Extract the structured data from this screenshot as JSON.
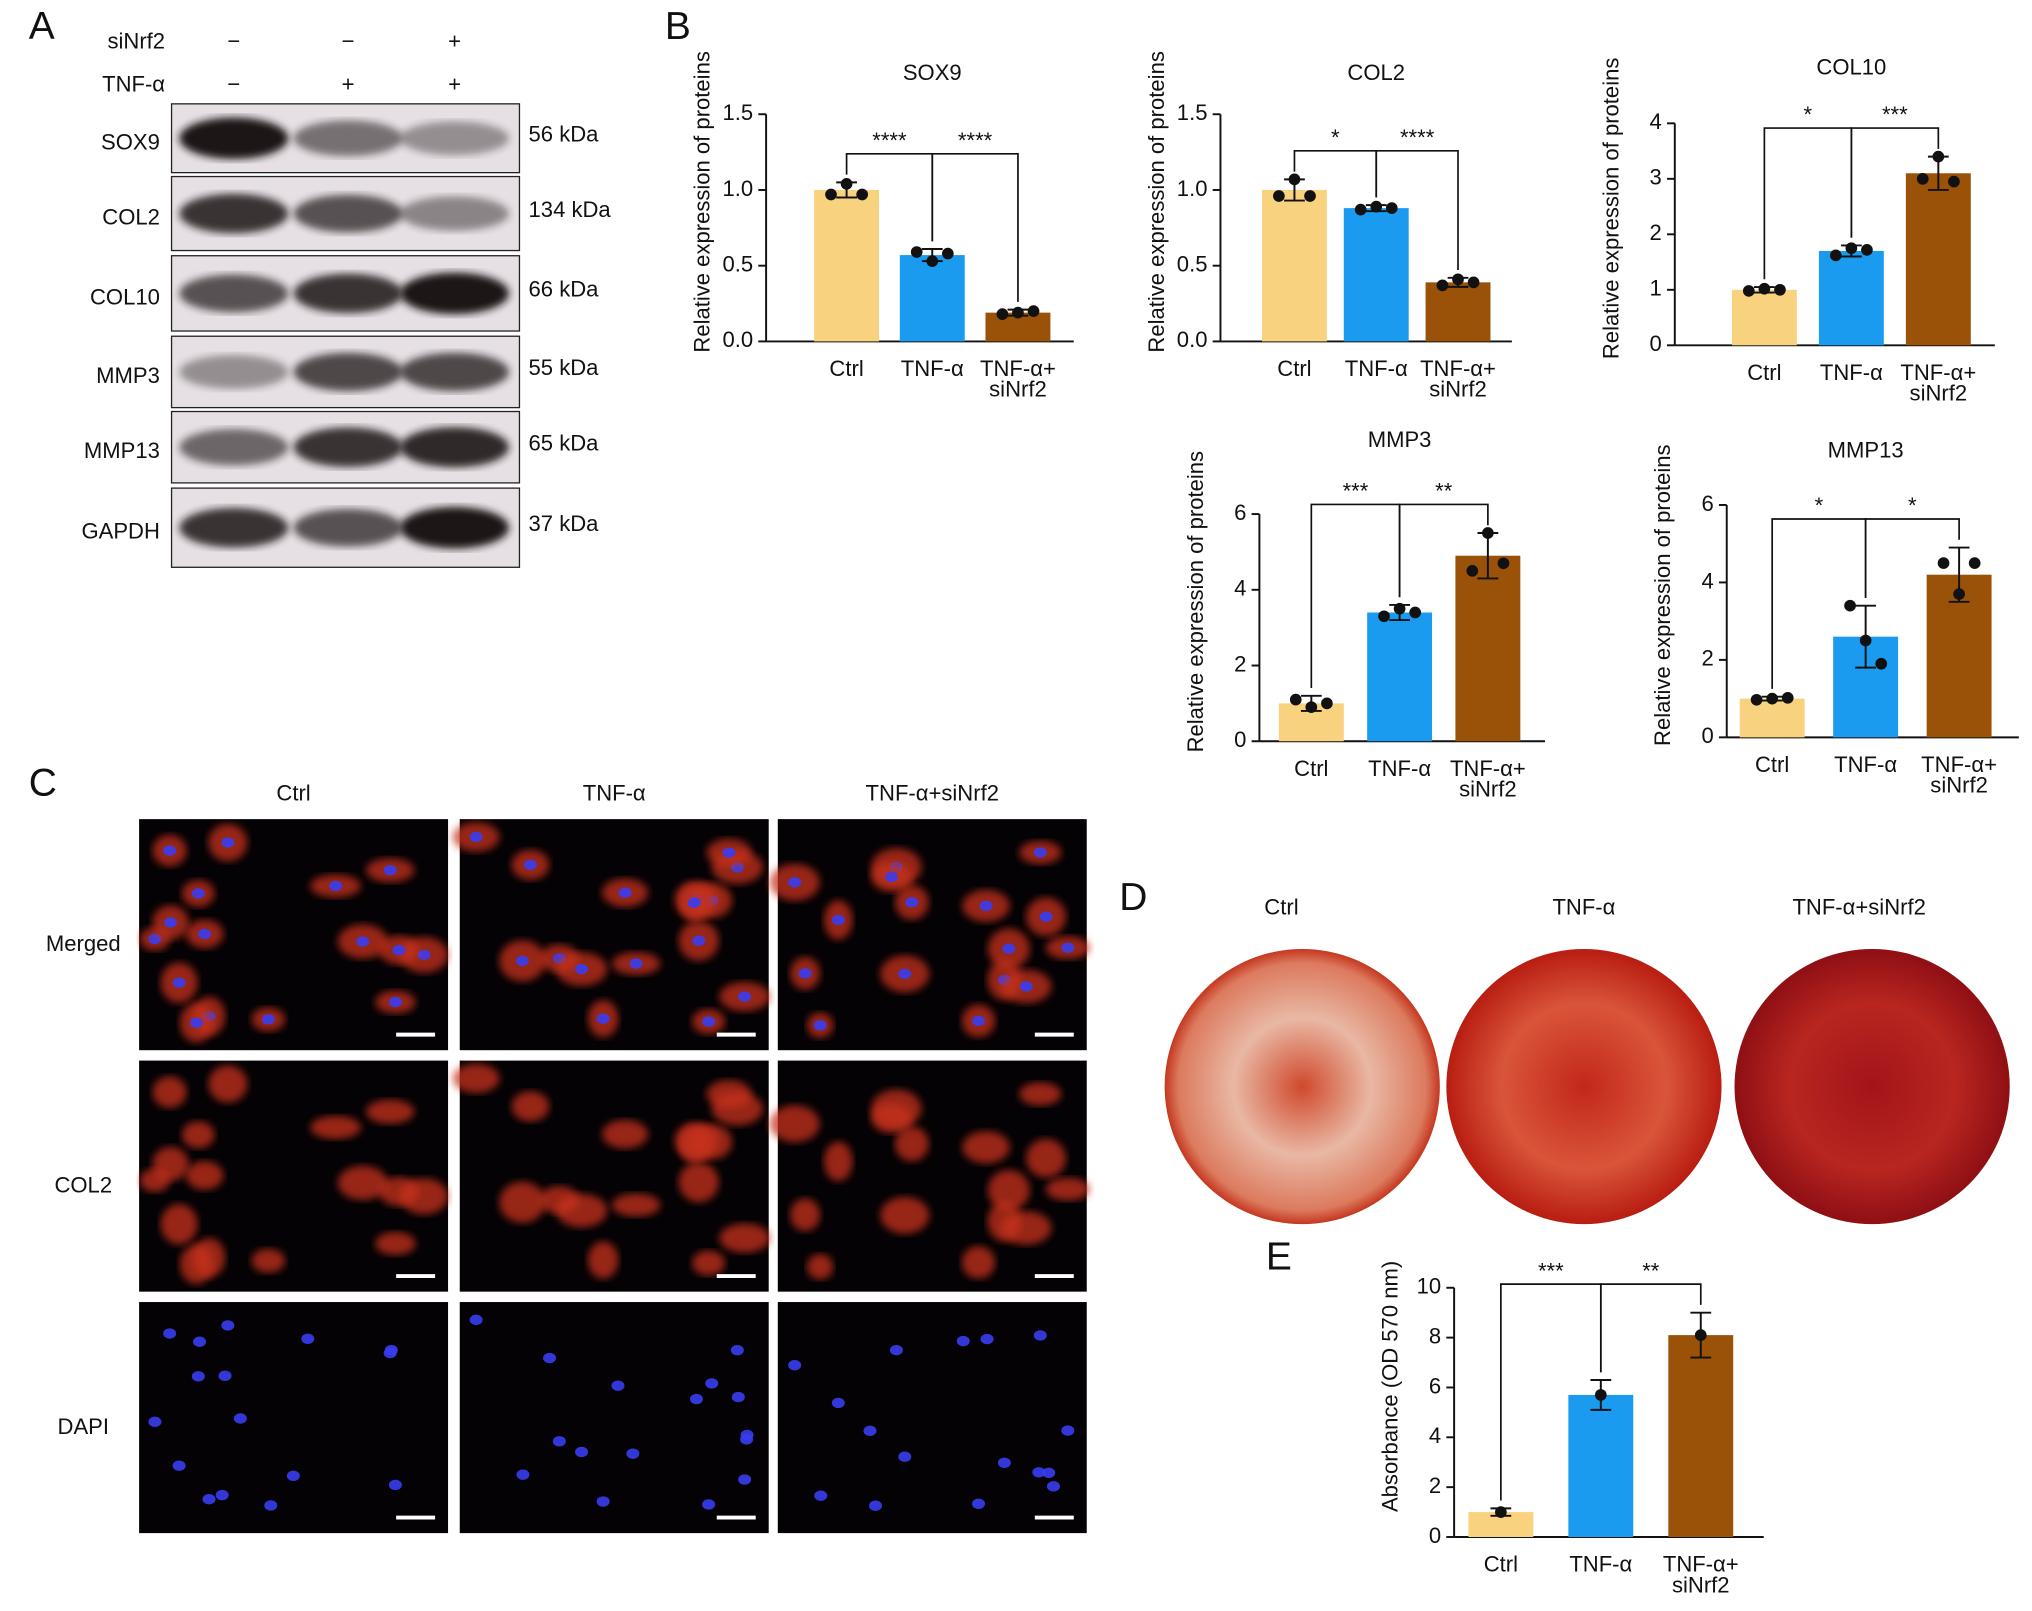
{
  "panel_labels": [
    "A",
    "B",
    "C",
    "D",
    "E"
  ],
  "western_blot": {
    "conditions": [
      {
        "name": "siNrf2",
        "marks": [
          "−",
          "−",
          "+"
        ]
      },
      {
        "name": "TNF-α",
        "marks": [
          "−",
          "+",
          "+"
        ]
      }
    ],
    "bands": [
      {
        "protein": "SOX9",
        "size": "56 kDa"
      },
      {
        "protein": "COL2",
        "size": "134 kDa"
      },
      {
        "protein": "COL10",
        "size": "66 kDa"
      },
      {
        "protein": "MMP3",
        "size": "55 kDa"
      },
      {
        "protein": "MMP13",
        "size": "65 kDa"
      },
      {
        "protein": "GAPDH",
        "size": "37 kDa"
      }
    ]
  },
  "chart_data": [
    {
      "type": "bar",
      "title": "SOX9",
      "ylabel": "Relative expression of proteins",
      "categories": [
        "Ctrl",
        "TNF-α",
        "TNF-α+\nsiNrf2"
      ],
      "colors": [
        "#f9d27f",
        "#1a9bf0",
        "#995207"
      ],
      "values": [
        1.0,
        0.57,
        0.19
      ],
      "errors": [
        0.05,
        0.04,
        0.02
      ],
      "points": [
        [
          0.97,
          1.04,
          0.97
        ],
        [
          0.59,
          0.53,
          0.58
        ],
        [
          0.18,
          0.19,
          0.2
        ]
      ],
      "ylim": [
        0,
        1.5
      ],
      "yticks": [
        {
          "value": 0,
          "label": "0.0"
        },
        {
          "value": 0.5,
          "label": "0.5"
        },
        {
          "value": 1,
          "label": "1.0"
        },
        {
          "value": 1.5,
          "label": "1.5"
        }
      ],
      "significance": [
        {
          "from": 0,
          "to": 1,
          "label": "****"
        },
        {
          "from": 1,
          "to": 2,
          "label": "****"
        }
      ]
    },
    {
      "type": "bar",
      "title": "COL2",
      "ylabel": "Relative expression of proteins",
      "categories": [
        "Ctrl",
        "TNF-α",
        "TNF-α+\nsiNrf2"
      ],
      "colors": [
        "#f9d27f",
        "#1a9bf0",
        "#995207"
      ],
      "values": [
        1.0,
        0.88,
        0.39
      ],
      "errors": [
        0.07,
        0.02,
        0.03
      ],
      "points": [
        [
          0.96,
          1.07,
          0.96
        ],
        [
          0.87,
          0.89,
          0.88
        ],
        [
          0.37,
          0.41,
          0.39
        ]
      ],
      "ylim": [
        0,
        1.5
      ],
      "yticks": [
        {
          "value": 0,
          "label": "0.0"
        },
        {
          "value": 0.5,
          "label": "0.5"
        },
        {
          "value": 1,
          "label": "1.0"
        },
        {
          "value": 1.5,
          "label": "1.5"
        }
      ],
      "significance": [
        {
          "from": 0,
          "to": 1,
          "label": "*"
        },
        {
          "from": 1,
          "to": 2,
          "label": "****"
        }
      ]
    },
    {
      "type": "bar",
      "title": "COL10",
      "ylabel": "Relative expression of proteins",
      "categories": [
        "Ctrl",
        "TNF-α",
        "TNF-α+\nsiNrf2"
      ],
      "colors": [
        "#f9d27f",
        "#1a9bf0",
        "#995207"
      ],
      "values": [
        1.0,
        1.7,
        3.1
      ],
      "errors": [
        0.05,
        0.1,
        0.3
      ],
      "points": [
        [
          0.98,
          1.02,
          1.0
        ],
        [
          1.62,
          1.75,
          1.72
        ],
        [
          3.0,
          3.4,
          2.95
        ]
      ],
      "ylim": [
        0,
        4
      ],
      "yticks": [
        0,
        1,
        2,
        3,
        4
      ],
      "significance": [
        {
          "from": 0,
          "to": 1,
          "label": "*"
        },
        {
          "from": 1,
          "to": 2,
          "label": "***"
        }
      ]
    },
    {
      "type": "bar",
      "title": "MMP3",
      "ylabel": "Relative expression of proteins",
      "categories": [
        "Ctrl",
        "TNF-α",
        "TNF-α+\nsiNrf2"
      ],
      "colors": [
        "#f9d27f",
        "#1a9bf0",
        "#995207"
      ],
      "values": [
        1.0,
        3.4,
        4.9
      ],
      "errors": [
        0.2,
        0.2,
        0.6
      ],
      "points": [
        [
          1.1,
          0.9,
          1.0
        ],
        [
          3.3,
          3.5,
          3.4
        ],
        [
          4.5,
          5.5,
          4.7
        ]
      ],
      "ylim": [
        0,
        6
      ],
      "yticks": [
        0,
        2,
        4,
        6
      ],
      "significance": [
        {
          "from": 0,
          "to": 1,
          "label": "***"
        },
        {
          "from": 1,
          "to": 2,
          "label": "**"
        }
      ]
    },
    {
      "type": "bar",
      "title": "MMP13",
      "ylabel": "Relative expression of proteins",
      "categories": [
        "Ctrl",
        "TNF-α",
        "TNF-α+\nsiNrf2"
      ],
      "colors": [
        "#f9d27f",
        "#1a9bf0",
        "#995207"
      ],
      "values": [
        1.0,
        2.6,
        4.2
      ],
      "errors": [
        0.05,
        0.8,
        0.7
      ],
      "points": [
        [
          0.97,
          1.0,
          1.02
        ],
        [
          3.4,
          2.5,
          1.9
        ],
        [
          4.5,
          3.7,
          4.5
        ]
      ],
      "ylim": [
        0,
        6
      ],
      "yticks": [
        0,
        2,
        4,
        6
      ],
      "significance": [
        {
          "from": 0,
          "to": 1,
          "label": "*"
        },
        {
          "from": 1,
          "to": 2,
          "label": "*"
        }
      ]
    },
    {
      "type": "bar",
      "ylabel": "Absorbance (OD 570 nm)",
      "categories": [
        "Ctrl",
        "TNF-α",
        "TNF-α+\nsiNrf2"
      ],
      "colors": [
        "#f9d27f",
        "#1a9bf0",
        "#995207"
      ],
      "values": [
        1.0,
        5.7,
        8.1
      ],
      "errors": [
        0.15,
        0.6,
        0.9
      ],
      "points": [
        [
          1.0
        ],
        [
          5.7
        ],
        [
          8.1
        ]
      ],
      "ylim": [
        0,
        10
      ],
      "yticks": [
        0,
        2,
        4,
        6,
        8,
        10
      ],
      "significance": [
        {
          "from": 0,
          "to": 1,
          "label": "***"
        },
        {
          "from": 1,
          "to": 2,
          "label": "**"
        }
      ]
    }
  ],
  "immunofluorescence": {
    "columns": [
      "Ctrl",
      "TNF-α",
      "TNF-α+siNrf2"
    ],
    "rows": [
      "Merged",
      "COL2",
      "DAPI"
    ]
  },
  "alizarin_staining": {
    "columns": [
      "Ctrl",
      "TNF-α",
      "TNF-α+siNrf2"
    ]
  }
}
